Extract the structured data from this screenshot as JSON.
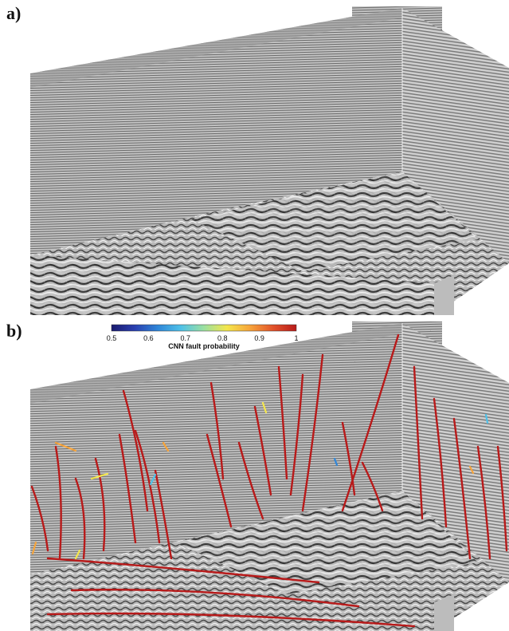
{
  "panels": [
    {
      "label": "a)"
    },
    {
      "label": "b)"
    }
  ],
  "colorbar": {
    "title": "CNN fault probability",
    "ticks": [
      "0.5",
      "0.6",
      "0.7",
      "0.8",
      "0.9",
      "1"
    ],
    "colors": [
      "#1a1a6e",
      "#2a3fb0",
      "#2f86d8",
      "#4fc1e8",
      "#9be0a0",
      "#f4e64b",
      "#f7a43a",
      "#e2522a",
      "#b81a1a"
    ]
  }
}
